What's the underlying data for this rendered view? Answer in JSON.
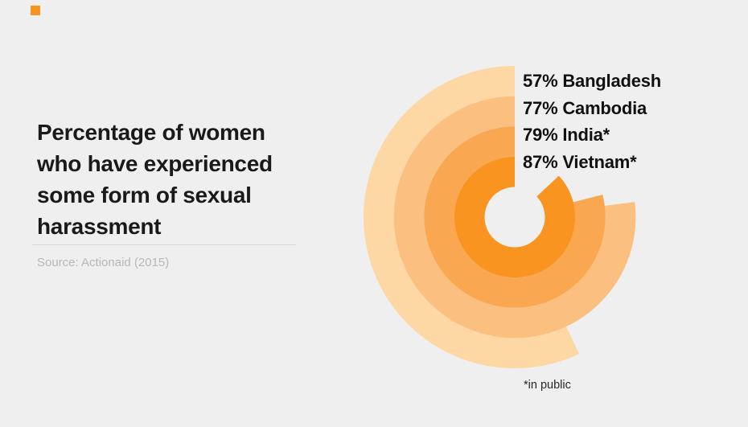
{
  "page": {
    "background_color": "#efefef"
  },
  "brand": {
    "color": "#f7941e"
  },
  "title": {
    "text": "Percentage of women who have experienced some form of sexual harassment",
    "lines": [
      "Percentage of women",
      "who have experienced",
      "some form of sexual",
      "harassment"
    ],
    "color": "#1a1a1a"
  },
  "source": {
    "text": "Source: Actionaid (2015)",
    "color": "#b7b7b7"
  },
  "chart_data": {
    "type": "bar",
    "variant": "radial-concentric-arcs",
    "description": "Concentric rings start at 12 o'clock and sweep counterclockwise; arc length = value % of 360 degrees. Outermost ring = Bangladesh, innermost = Vietnam.",
    "categories": [
      "Bangladesh",
      "Cambodia",
      "India",
      "Vietnam"
    ],
    "values": [
      57,
      77,
      79,
      87
    ],
    "unit": "%",
    "series_colors": [
      "#fdd7a4",
      "#fbc07f",
      "#f9a851",
      "#f8941f"
    ],
    "legend": [
      "57% Bangladesh",
      "77% Cambodia",
      "79% India*",
      "87% Vietnam*"
    ],
    "legend_position": "top-right of chart",
    "footnote": "*in public",
    "title": "Percentage of women who have experienced some form of sexual harassment",
    "source": "Source: Actionaid (2015)",
    "grid": false,
    "axes": false
  },
  "footnote": {
    "text": "*in public",
    "color": "#262626"
  }
}
